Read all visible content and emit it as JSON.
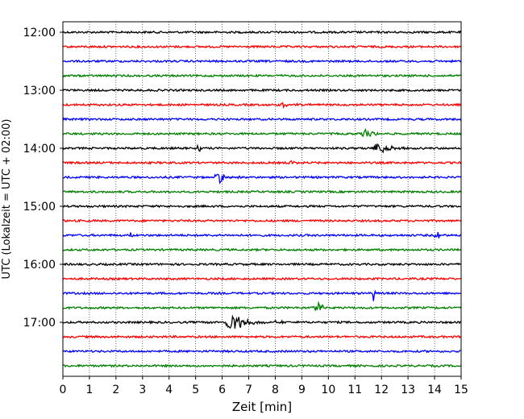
{
  "chart_data": {
    "type": "line",
    "title": "",
    "xlabel": "Zeit  [min]",
    "ylabel": "UTC (Lokalzeit = UTC + 02:00)",
    "xlim": [
      0,
      15
    ],
    "x_ticks": [
      "0",
      "1",
      "2",
      "3",
      "4",
      "5",
      "6",
      "7",
      "8",
      "9",
      "10",
      "11",
      "12",
      "13",
      "14",
      "15"
    ],
    "y_tick_labels": [
      "12:00",
      "13:00",
      "14:00",
      "15:00",
      "16:00",
      "17:00"
    ],
    "grid": "vertical dotted lines at each minute",
    "trace_interval_minutes": 15,
    "trace_colors": [
      "#000000",
      "#ff0000",
      "#0000ff",
      "#008000"
    ],
    "series": [
      {
        "start": "12:00",
        "events": []
      },
      {
        "start": "12:15",
        "events": []
      },
      {
        "start": "12:30",
        "events": []
      },
      {
        "start": "12:45",
        "events": []
      },
      {
        "start": "13:00",
        "events": []
      },
      {
        "start": "13:15",
        "events": [
          {
            "t": 8.3,
            "amp": 3,
            "dur": 0.8
          }
        ]
      },
      {
        "start": "13:30",
        "events": []
      },
      {
        "start": "13:45",
        "events": [
          {
            "t": 11.4,
            "amp": 6,
            "dur": 0.7
          }
        ]
      },
      {
        "start": "14:00",
        "events": [
          {
            "t": 5.1,
            "amp": 9,
            "dur": 0.15
          },
          {
            "t": 11.9,
            "amp": 8,
            "dur": 1.0
          }
        ]
      },
      {
        "start": "14:15",
        "events": [
          {
            "t": 8.6,
            "amp": 3,
            "dur": 0.4
          }
        ]
      },
      {
        "start": "14:30",
        "events": [
          {
            "t": 5.9,
            "amp": 7,
            "dur": 0.8
          }
        ]
      },
      {
        "start": "14:45",
        "events": []
      },
      {
        "start": "15:00",
        "events": []
      },
      {
        "start": "15:15",
        "events": []
      },
      {
        "start": "15:30",
        "events": [
          {
            "t": 2.55,
            "amp": 7,
            "dur": 0.1
          },
          {
            "t": 14.1,
            "amp": 7,
            "dur": 0.4
          }
        ]
      },
      {
        "start": "15:45",
        "events": []
      },
      {
        "start": "16:00",
        "events": []
      },
      {
        "start": "16:15",
        "events": []
      },
      {
        "start": "16:30",
        "events": [
          {
            "t": 11.7,
            "amp": 11,
            "dur": 0.15
          }
        ]
      },
      {
        "start": "16:45",
        "events": [
          {
            "t": 9.6,
            "amp": 8,
            "dur": 0.6
          }
        ]
      },
      {
        "start": "17:00",
        "events": [
          {
            "t": 6.4,
            "amp": 14,
            "dur": 1.2
          },
          {
            "t": 5.6,
            "amp": 3,
            "dur": 0.3
          },
          {
            "t": 8.1,
            "amp": 3,
            "dur": 0.5
          }
        ]
      },
      {
        "start": "17:15",
        "events": []
      },
      {
        "start": "17:30",
        "events": []
      },
      {
        "start": "17:45",
        "events": []
      }
    ]
  }
}
